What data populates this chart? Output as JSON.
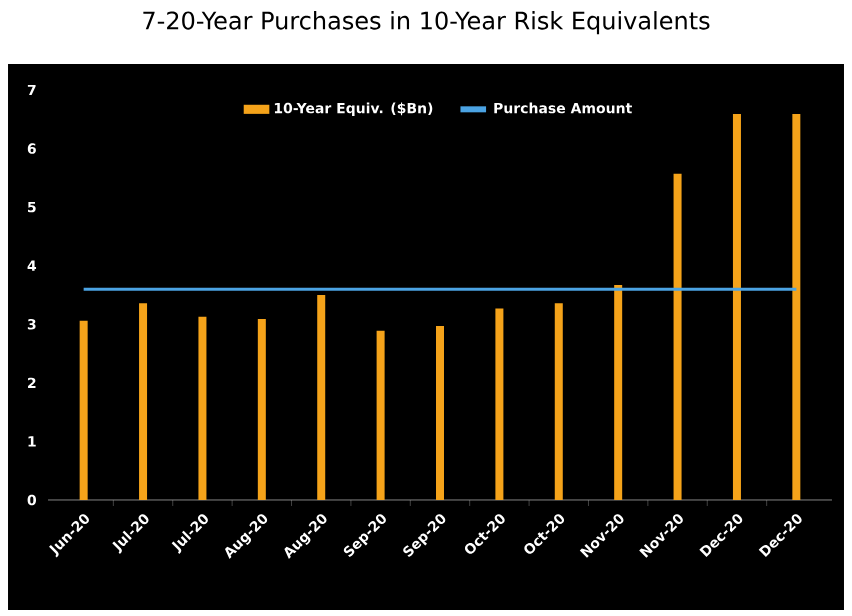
{
  "chart_data": {
    "type": "bar",
    "title": "7-20-Year Purchases in 10-Year Risk Equivalents",
    "categories": [
      "Jun-20",
      "Jul-20",
      "Jul-20",
      "Aug-20",
      "Aug-20",
      "Sep-20",
      "Sep-20",
      "Oct-20",
      "Oct-20",
      "Nov-20",
      "Nov-20",
      "Dec-20",
      "Dec-20"
    ],
    "series": [
      {
        "name": "10-Year Equiv. ($Bn)",
        "color": "#f5a31a",
        "values": [
          3.06,
          3.36,
          3.13,
          3.09,
          3.5,
          2.89,
          2.97,
          3.27,
          3.36,
          3.67,
          5.57,
          6.59,
          6.59
        ]
      },
      {
        "name": "Purchase Amount",
        "type": "line",
        "color": "#4ba3e3",
        "values": [
          3.6,
          3.6,
          3.6,
          3.6,
          3.6,
          3.6,
          3.6,
          3.6,
          3.6,
          3.6,
          3.6,
          3.6,
          3.6
        ]
      }
    ],
    "ylim": [
      0,
      7
    ],
    "yticks": [
      0,
      1,
      2,
      3,
      4,
      5,
      6,
      7
    ],
    "legend": "top",
    "grid": false
  }
}
